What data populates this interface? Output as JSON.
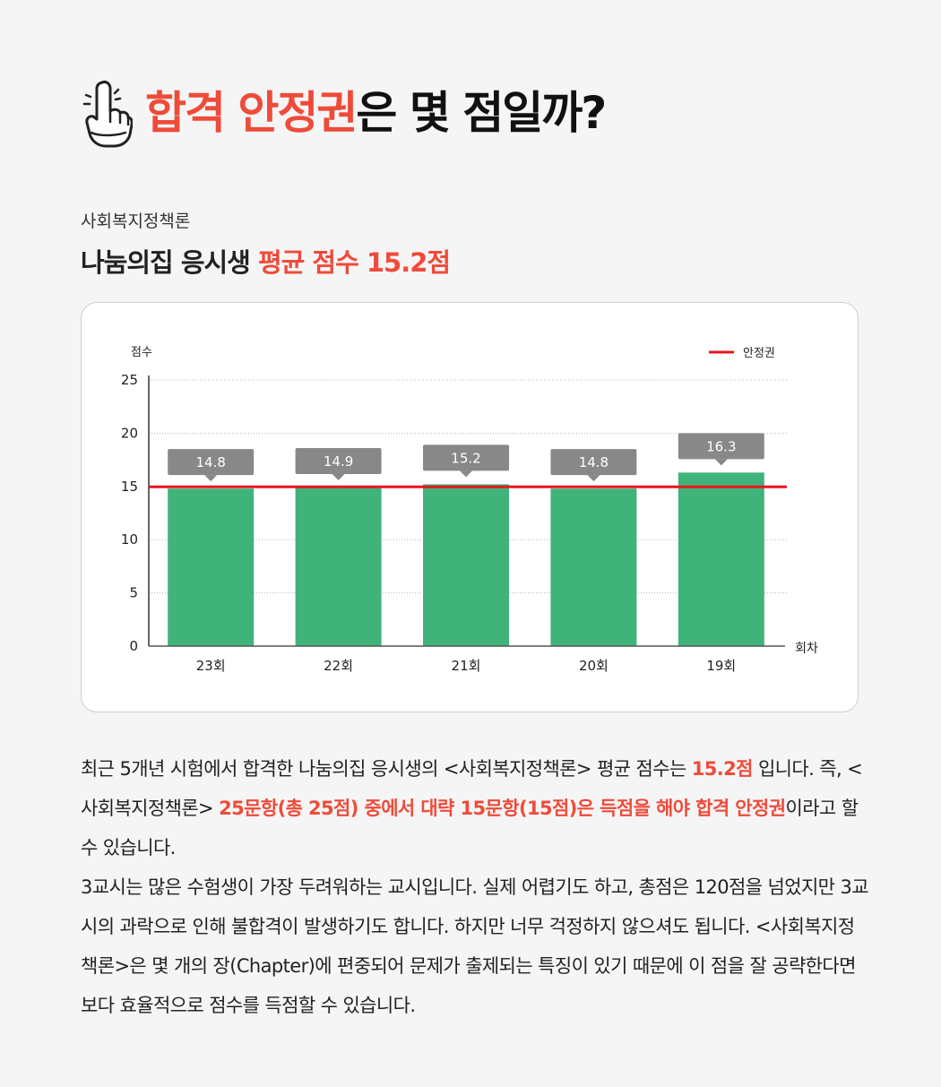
{
  "headline": {
    "part1": "합격 안정권",
    "part2": "은 몇 점일까?"
  },
  "subject": "사회복지정책론",
  "subhead": {
    "part1": "나눔의집 응시생 ",
    "part2": "평균 점수 15.2점"
  },
  "chart_data": {
    "type": "bar",
    "ylabel": "점수",
    "xlabel": "회차",
    "categories": [
      "23회",
      "22회",
      "21회",
      "20회",
      "19회"
    ],
    "values": [
      14.8,
      14.9,
      15.2,
      14.8,
      16.3
    ],
    "data_labels": [
      "14.8",
      "14.9",
      "15.2",
      "14.8",
      "16.3"
    ],
    "ylim": [
      0,
      25
    ],
    "yticks": [
      0,
      5,
      10,
      15,
      20,
      25
    ],
    "threshold": {
      "name": "안정권",
      "value": 15
    },
    "grid": true,
    "legend": "top-right",
    "colors": {
      "bar": "#40b37a",
      "threshold": "#e8151e",
      "label_box": "#888888"
    }
  },
  "body": {
    "p1_a": "최근 5개년 시험에서 합격한 나눔의집 응시생의 <사회복지정책론> 평균 점수는 ",
    "p1_b": "15.2점",
    "p1_c": " 입니다. 즉, <사회복지정책론> ",
    "p1_d": "25문항(총 25점) 중에서 대략 15문항(15점)은 득점을 해야 합격 안정권",
    "p1_e": "이라고 할 수 있습니다.",
    "p2": "3교시는 많은 수험생이 가장 두려워하는 교시입니다. 실제 어렵기도 하고, 총점은 120점을 넘었지만 3교시의 과락으로 인해 불합격이 발생하기도 합니다. 하지만 너무 걱정하지 않으셔도 됩니다. <사회복지정책론>은 몇 개의 장(Chapter)에 편중되어 문제가 출제되는 특징이 있기 때문에 이 점을 잘 공략한다면 보다 효율적으로 점수를 득점할 수 있습니다."
  }
}
